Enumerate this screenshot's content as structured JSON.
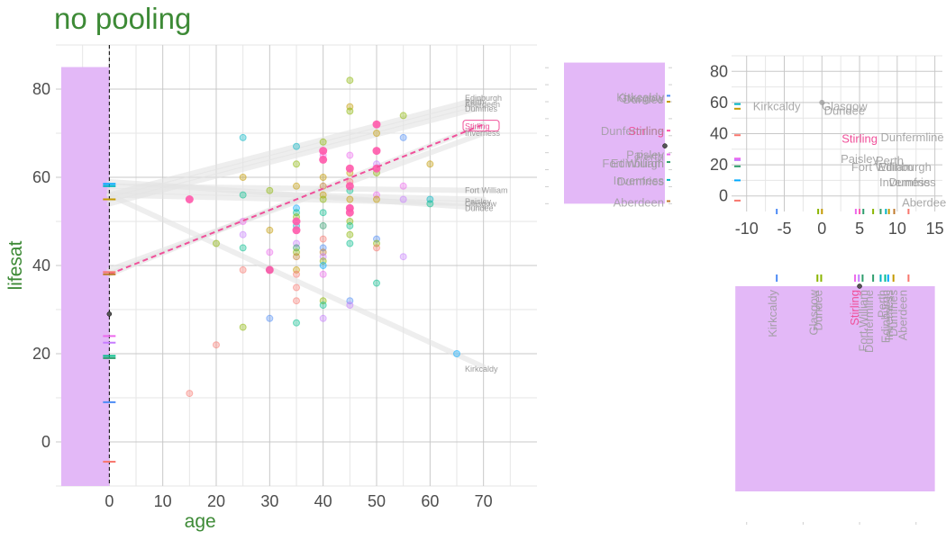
{
  "title": "no pooling",
  "colors": {
    "title": "#3d8a36",
    "panel_fill": "#e3b8f7",
    "grid_major": "#c8c8c8",
    "grid_minor": "#e6e6e6",
    "axis_text": "#4d4d4d",
    "fit_line": "#f0509a",
    "trend_line": "#e4e4e4"
  },
  "city_colors": {
    "Aberdeen": "#f8766d",
    "Dumfries": "#c49a00",
    "Dundee": "#8ab500",
    "Dunfermline": "#c07a2c",
    "Edinburgh": "#2f9e6e",
    "Fort William": "#00bd8c",
    "Glasgow": "#00b4c4",
    "Inverness": "#00a9ff",
    "Kirkcaldy": "#4e8cf5",
    "Paisley": "#c77cff",
    "Perth": "#ed68ed",
    "Stirling": "#ff59ab"
  },
  "chart_data": [
    {
      "id": "main",
      "type": "scatter",
      "xlabel": "age",
      "ylabel": "lifesat",
      "xlim": [
        -10,
        80
      ],
      "ylim": [
        -10,
        90
      ],
      "xticks": [
        0,
        10,
        20,
        30,
        40,
        50,
        60,
        70
      ],
      "yticks": [
        0,
        20,
        40,
        60,
        80
      ],
      "grid": true,
      "shaded_x_range": [
        -9,
        0
      ],
      "vline_x": 0,
      "fit_line": {
        "name": "Stirling",
        "x": [
          0,
          70
        ],
        "y": [
          38,
          72
        ]
      },
      "trend_lines": [
        {
          "label": "Edinburgh",
          "y0": 56,
          "y70": 78
        },
        {
          "label": "Aberdeen",
          "y0": 55,
          "y70": 77
        },
        {
          "label": "Dumfries",
          "y0": 54,
          "y70": 76
        },
        {
          "label": "Stirling",
          "y0": 38,
          "y70": 72
        },
        {
          "label": "Inverness",
          "y0": 39,
          "y70": 70
        },
        {
          "label": "Fort William",
          "y0": 58,
          "y70": 57
        },
        {
          "label": "Paisley",
          "y0": 57,
          "y70": 55
        },
        {
          "label": "Glasgow",
          "y0": 56,
          "y70": 54
        },
        {
          "label": "Dundee",
          "y0": 59,
          "y70": 53
        },
        {
          "label": "Kirkcaldy",
          "y0": 56,
          "y70": 17
        }
      ],
      "y_end_labels": [
        {
          "label": "Edinburgh",
          "y": 78
        },
        {
          "label": "Perth",
          "y": 77
        },
        {
          "label": "Aberdeen",
          "y": 76.5
        },
        {
          "label": "Dumfries",
          "y": 75.5
        },
        {
          "label": "Stirling",
          "y": 71.5
        },
        {
          "label": "Inverness",
          "y": 70
        },
        {
          "label": "Fort William",
          "y": 57
        },
        {
          "label": "Paisley",
          "y": 54.5
        },
        {
          "label": "Glasgow",
          "y": 54
        },
        {
          "label": "Dundee",
          "y": 53
        },
        {
          "label": "Kirkcaldy",
          "y": 16.5
        }
      ],
      "intercepts": [
        {
          "city": "Inverness",
          "y": 58.5
        },
        {
          "city": "Glasgow",
          "y": 58
        },
        {
          "city": "Dumfries",
          "y": 55
        },
        {
          "city": "Aberdeen",
          "y": 38.5
        },
        {
          "city": "Dunfermline",
          "y": 38
        },
        {
          "city": "Perth",
          "y": 24
        },
        {
          "city": "Paisley",
          "y": 22.5
        },
        {
          "city": "Fort William",
          "y": 19.5
        },
        {
          "city": "Edinburgh",
          "y": 19
        },
        {
          "city": "Kirkcaldy",
          "y": 9
        },
        {
          "city": "Aberdeen",
          "y": -4.5
        }
      ],
      "intercept_mean": 29,
      "points_stirling": [
        [
          15,
          55
        ],
        [
          30,
          39
        ],
        [
          35,
          48
        ],
        [
          35,
          50
        ],
        [
          40,
          66
        ],
        [
          40,
          64
        ],
        [
          45,
          62
        ],
        [
          45,
          58
        ],
        [
          45,
          53
        ],
        [
          45,
          52
        ],
        [
          50,
          72
        ],
        [
          50,
          66
        ],
        [
          50,
          62
        ]
      ],
      "points_other": [
        [
          15,
          11,
          "Aberdeen"
        ],
        [
          20,
          22,
          "Aberdeen"
        ],
        [
          20,
          45,
          "Dundee"
        ],
        [
          25,
          26,
          "Dundee"
        ],
        [
          25,
          69,
          "Glasgow"
        ],
        [
          25,
          60,
          "Dumfries"
        ],
        [
          25,
          56,
          "Fort William"
        ],
        [
          25,
          50,
          "Perth"
        ],
        [
          25,
          47,
          "Paisley"
        ],
        [
          25,
          44,
          "Fort William"
        ],
        [
          25,
          39,
          "Aberdeen"
        ],
        [
          30,
          57,
          "Dundee"
        ],
        [
          30,
          48,
          "Dumfries"
        ],
        [
          30,
          43,
          "Perth"
        ],
        [
          30,
          39,
          "Edinburgh"
        ],
        [
          30,
          28,
          "Kirkcaldy"
        ],
        [
          35,
          67,
          "Glasgow"
        ],
        [
          35,
          63,
          "Dundee"
        ],
        [
          35,
          58,
          "Dumfries"
        ],
        [
          35,
          53,
          "Inverness"
        ],
        [
          35,
          52,
          "Fort William"
        ],
        [
          35,
          51,
          "Dundee"
        ],
        [
          35,
          49,
          "Glasgow"
        ],
        [
          35,
          45,
          "Paisley"
        ],
        [
          35,
          44,
          "Edinburgh"
        ],
        [
          35,
          43,
          "Dundee"
        ],
        [
          35,
          42,
          "Dunfermline"
        ],
        [
          35,
          39,
          "Dumfries"
        ],
        [
          35,
          38,
          "Aberdeen"
        ],
        [
          35,
          35,
          "Aberdeen"
        ],
        [
          35,
          32,
          "Aberdeen"
        ],
        [
          35,
          27,
          "Fort William"
        ],
        [
          40,
          68,
          "Dundee"
        ],
        [
          40,
          65,
          "Perth"
        ],
        [
          40,
          60,
          "Dumfries"
        ],
        [
          40,
          58,
          "Dunfermline"
        ],
        [
          40,
          56,
          "Dumfries"
        ],
        [
          40,
          55,
          "Dundee"
        ],
        [
          40,
          52,
          "Fort William"
        ],
        [
          40,
          49,
          "Edinburgh"
        ],
        [
          40,
          46,
          "Aberdeen"
        ],
        [
          40,
          44,
          "Kirkcaldy"
        ],
        [
          40,
          43,
          "Dunfermline"
        ],
        [
          40,
          42,
          "Paisley"
        ],
        [
          40,
          41,
          "Dundee"
        ],
        [
          40,
          40,
          "Inverness"
        ],
        [
          40,
          38,
          "Perth"
        ],
        [
          40,
          32,
          "Dundee"
        ],
        [
          40,
          31,
          "Fort William"
        ],
        [
          40,
          28,
          "Paisley"
        ],
        [
          45,
          82,
          "Dundee"
        ],
        [
          45,
          76,
          "Dumfries"
        ],
        [
          45,
          75,
          "Dundee"
        ],
        [
          45,
          65,
          "Perth"
        ],
        [
          45,
          61,
          "Dumfries"
        ],
        [
          45,
          59,
          "Aberdeen"
        ],
        [
          45,
          57,
          "Fort William"
        ],
        [
          45,
          55,
          "Dumfries"
        ],
        [
          45,
          53,
          "Perth"
        ],
        [
          45,
          50,
          "Dundee"
        ],
        [
          45,
          49,
          "Fort William"
        ],
        [
          45,
          47,
          "Dundee"
        ],
        [
          45,
          45,
          "Fort William"
        ],
        [
          45,
          32,
          "Kirkcaldy"
        ],
        [
          45,
          31,
          "Paisley"
        ],
        [
          50,
          70,
          "Dumfries"
        ],
        [
          50,
          63,
          "Paisley"
        ],
        [
          50,
          61,
          "Dundee"
        ],
        [
          50,
          56,
          "Perth"
        ],
        [
          50,
          55,
          "Dumfries"
        ],
        [
          50,
          46,
          "Kirkcaldy"
        ],
        [
          50,
          45,
          "Dundee"
        ],
        [
          50,
          44,
          "Aberdeen"
        ],
        [
          50,
          36,
          "Fort William"
        ],
        [
          55,
          74,
          "Dundee"
        ],
        [
          55,
          69,
          "Kirkcaldy"
        ],
        [
          55,
          58,
          "Perth"
        ],
        [
          55,
          55,
          "Paisley"
        ],
        [
          55,
          42,
          "Paisley"
        ],
        [
          60,
          63,
          "Dumfries"
        ],
        [
          60,
          55,
          "Glasgow"
        ],
        [
          60,
          54,
          "Fort William"
        ],
        [
          65,
          20,
          "Inverness"
        ]
      ]
    },
    {
      "id": "intercept-panel",
      "type": "bar",
      "x": 0,
      "ylim": [
        -8,
        82
      ],
      "yticks": [
        -5,
        5,
        15,
        25,
        35,
        45,
        55,
        65,
        75
      ],
      "bar_y": [
        -5,
        78
      ],
      "labels": [
        {
          "label": "Kirkcaldy",
          "y": 58
        },
        {
          "label": "Glasgow",
          "y": 57.5
        },
        {
          "label": "Dundee",
          "y": 56.5
        },
        {
          "label": "Stirling",
          "y": 38
        },
        {
          "label": "Dunfermline",
          "y": 38
        },
        {
          "label": "Paisley",
          "y": 24
        },
        {
          "label": "Perth",
          "y": 23
        },
        {
          "label": "Edinburgh",
          "y": 19
        },
        {
          "label": "Fort William",
          "y": 19
        },
        {
          "label": "Inverness",
          "y": 9
        },
        {
          "label": "Dumfries",
          "y": 8.5
        },
        {
          "label": "Aberdeen",
          "y": -4
        }
      ],
      "ticks": [
        {
          "city": "Kirkcaldy",
          "y": 58.5
        },
        {
          "city": "Dumfries",
          "y": 55
        },
        {
          "city": "Stirling",
          "y": 38
        },
        {
          "city": "Perth",
          "y": 24
        },
        {
          "city": "Edinburgh",
          "y": 19.5
        },
        {
          "city": "Glasgow",
          "y": 9
        },
        {
          "city": "Dunfermline",
          "y": -3.5
        }
      ],
      "mean": 29
    },
    {
      "id": "slope-intercept-panel",
      "type": "scatter",
      "xlim": [
        -12,
        16
      ],
      "ylim": [
        -10,
        90
      ],
      "xticks": [
        -10,
        -5,
        0,
        5,
        10,
        15
      ],
      "yticks": [
        0,
        20,
        40,
        60,
        80
      ],
      "grid": true,
      "labels": [
        {
          "label": "Kirkcaldy",
          "x": -6,
          "y": 58
        },
        {
          "label": "Glasgow",
          "x": 3,
          "y": 58
        },
        {
          "label": "Dundee",
          "x": 3,
          "y": 55
        },
        {
          "label": "Stirling",
          "x": 5,
          "y": 37
        },
        {
          "label": "Dunfermline",
          "x": 12,
          "y": 38
        },
        {
          "label": "Paisley",
          "x": 5,
          "y": 24
        },
        {
          "label": "Perth",
          "x": 9,
          "y": 23
        },
        {
          "label": "Fort William",
          "x": 8,
          "y": 19
        },
        {
          "label": "Edinburgh",
          "x": 11,
          "y": 19
        },
        {
          "label": "Dumfries",
          "x": 12,
          "y": 9
        },
        {
          "label": "Inverness",
          "x": 11,
          "y": 9
        },
        {
          "label": "Aberdeen",
          "x": 14,
          "y": -4
        }
      ],
      "point": {
        "x": 0,
        "y": 60
      },
      "y_ticks_marks": [
        {
          "city": "Glasgow",
          "y": 59
        },
        {
          "city": "Dumfries",
          "y": 56
        },
        {
          "city": "Aberdeen",
          "y": 39
        },
        {
          "city": "Perth",
          "y": 24
        },
        {
          "city": "Paisley",
          "y": 23
        },
        {
          "city": "Edinburgh",
          "y": 19
        },
        {
          "city": "Inverness",
          "y": 10
        },
        {
          "city": "Aberdeen",
          "y": -3
        }
      ],
      "x_ticks_marks": [
        {
          "city": "Kirkcaldy",
          "x": -6
        },
        {
          "city": "Dundee",
          "x": -0.5
        },
        {
          "city": "Dumfries",
          "x": 0
        },
        {
          "city": "Perth",
          "x": 4.5
        },
        {
          "city": "Stirling",
          "x": 5
        },
        {
          "city": "Edinburgh",
          "x": 5.5
        },
        {
          "city": "Dundee",
          "x": 6.8
        },
        {
          "city": "Edinburgh",
          "x": 7.8
        },
        {
          "city": "Glasgow",
          "x": 8.5
        },
        {
          "city": "Dumfries",
          "x": 8.9
        },
        {
          "city": "Dunfermline",
          "x": 9.6
        },
        {
          "city": "Aberdeen",
          "x": 11.5
        }
      ]
    },
    {
      "id": "slope-panel",
      "type": "bar",
      "xlim": [
        -12,
        16
      ],
      "bar_x": [
        -11.5,
        15
      ],
      "labels": [
        {
          "label": "Kirkcaldy",
          "x": -6
        },
        {
          "label": "Glasgow",
          "x": -0.6
        },
        {
          "label": "Dundee",
          "x": 0
        },
        {
          "label": "Stirling",
          "x": 4.9
        },
        {
          "label": "Fort William",
          "x": 6
        },
        {
          "label": "Dunfermline",
          "x": 6.8
        },
        {
          "label": "Perth",
          "x": 8.5
        },
        {
          "label": "Edinburgh",
          "x": 9
        },
        {
          "label": "Inverness",
          "x": 9.4
        },
        {
          "label": "Dumfries",
          "x": 10
        },
        {
          "label": "Aberdeen",
          "x": 11.3
        }
      ],
      "ticks": [
        {
          "city": "Kirkcaldy",
          "x": -6
        },
        {
          "city": "Dundee",
          "x": -0.6
        },
        {
          "city": "Dundee",
          "x": -0.1
        },
        {
          "city": "Perth",
          "x": 4.4
        },
        {
          "city": "Paisley",
          "x": 4.9
        },
        {
          "city": "Edinburgh",
          "x": 5.4
        },
        {
          "city": "Edinburgh",
          "x": 6.8
        },
        {
          "city": "Glasgow",
          "x": 7.8
        },
        {
          "city": "Fort William",
          "x": 8.4
        },
        {
          "city": "Inverness",
          "x": 8.8
        },
        {
          "city": "Dumfries",
          "x": 9.5
        },
        {
          "city": "Aberdeen",
          "x": 11.5
        }
      ],
      "mean": 5
    }
  ]
}
